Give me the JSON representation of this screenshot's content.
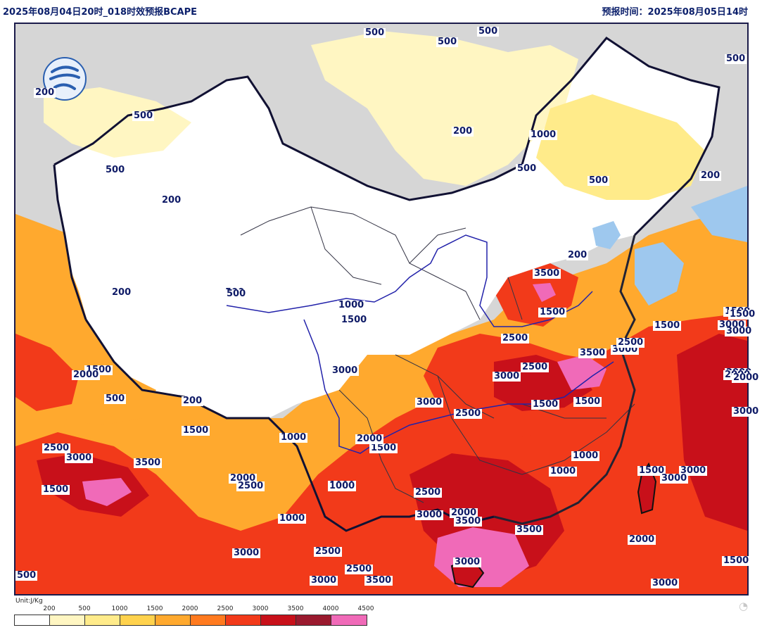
{
  "header": {
    "title_left": "2025年08月04日20时_018时效预报BCAPE",
    "title_right": "预报时间：2025年08月05日14时"
  },
  "legend": {
    "unit": "Unit:J/Kg",
    "ticks": [
      "200",
      "500",
      "1000",
      "1500",
      "2000",
      "2500",
      "3000",
      "3500",
      "4000",
      "4500"
    ],
    "colors": [
      "#ffffff",
      "#fff6c2",
      "#ffeb8a",
      "#ffd24d",
      "#ffa92e",
      "#ff7a1f",
      "#f23a1a",
      "#c8101a",
      "#9a1a2e",
      "#f06ab8"
    ]
  },
  "map": {
    "background_color": "#d6d6d6",
    "land_color": "#ffffff",
    "border_color": "#111133",
    "river_color": "#2222aa",
    "water_color": "#9ec8ee"
  },
  "contour_labels": [
    {
      "text": "500"
    },
    {
      "text": "500"
    },
    {
      "text": "500"
    },
    {
      "text": "500"
    },
    {
      "text": "200"
    },
    {
      "text": "500"
    },
    {
      "text": "200"
    },
    {
      "text": "1000"
    },
    {
      "text": "500"
    },
    {
      "text": "500"
    },
    {
      "text": "200"
    },
    {
      "text": "500"
    },
    {
      "text": "200"
    },
    {
      "text": "200"
    },
    {
      "text": "3500"
    },
    {
      "text": "200"
    },
    {
      "text": "500"
    },
    {
      "text": "1000"
    },
    {
      "text": "1500"
    },
    {
      "text": "1500"
    },
    {
      "text": "1500"
    },
    {
      "text": "1500"
    },
    {
      "text": "3000"
    },
    {
      "text": "2500"
    },
    {
      "text": "3500"
    },
    {
      "text": "3000"
    },
    {
      "text": "2500"
    },
    {
      "text": "1500"
    },
    {
      "text": "2000"
    },
    {
      "text": "500"
    },
    {
      "text": "2500"
    },
    {
      "text": "3000"
    },
    {
      "text": "3000"
    },
    {
      "text": "500"
    },
    {
      "text": "200"
    },
    {
      "text": "1500"
    },
    {
      "text": "1000"
    },
    {
      "text": "1500"
    },
    {
      "text": "1500"
    },
    {
      "text": "2500"
    },
    {
      "text": "2000"
    },
    {
      "text": "1500"
    },
    {
      "text": "2500"
    },
    {
      "text": "1000"
    },
    {
      "text": "3000"
    },
    {
      "text": "3500"
    },
    {
      "text": "1000"
    },
    {
      "text": "1500"
    },
    {
      "text": "2000"
    },
    {
      "text": "2500"
    },
    {
      "text": "1000"
    },
    {
      "text": "1000"
    },
    {
      "text": "1500"
    },
    {
      "text": "3000"
    },
    {
      "text": "3000"
    },
    {
      "text": "2000"
    },
    {
      "text": "2500"
    },
    {
      "text": "3000"
    },
    {
      "text": "2000"
    },
    {
      "text": "3500"
    },
    {
      "text": "1000"
    },
    {
      "text": "3500"
    },
    {
      "text": "2000"
    },
    {
      "text": "3000"
    },
    {
      "text": "2500"
    },
    {
      "text": "3000"
    },
    {
      "text": "2500"
    },
    {
      "text": "3000"
    },
    {
      "text": "3500"
    },
    {
      "text": "3000"
    },
    {
      "text": "1500"
    },
    {
      "text": "3000"
    },
    {
      "text": "500"
    },
    {
      "text": "2000"
    },
    {
      "text": "3000"
    },
    {
      "text": "2000"
    },
    {
      "text": "1500"
    },
    {
      "text": "3000"
    }
  ]
}
